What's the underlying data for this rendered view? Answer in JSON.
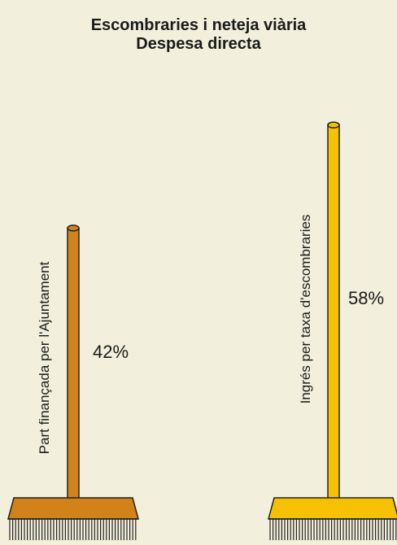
{
  "chart_data": {
    "type": "bar",
    "title": "Escombraries i neteja viària",
    "subtitle": "Despesa directa",
    "categories": [
      "Part finançada per l'Ajuntament",
      "Ingrés per taxa d'escombraries"
    ],
    "values": [
      42,
      58
    ],
    "value_labels": [
      "42%",
      "58%"
    ],
    "unit": "%",
    "colors": [
      "#d18218",
      "#f6c100"
    ],
    "ylim": [
      0,
      100
    ],
    "grid": false,
    "legend": "none"
  }
}
